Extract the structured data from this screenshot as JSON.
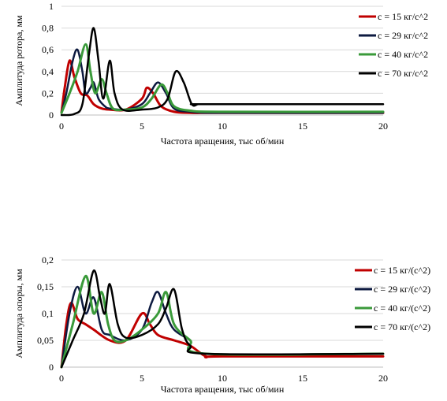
{
  "chart_data": [
    {
      "type": "line",
      "xlabel": "Частота вращения, тыс об/мин",
      "ylabel": "Амплитуда ротора, мм",
      "xlim": [
        0,
        20
      ],
      "ylim": [
        0,
        1
      ],
      "xticks": [
        "0",
        "5",
        "10",
        "15",
        "20"
      ],
      "yticks": [
        "0",
        "0,2",
        "0,4",
        "0,6",
        "0,8",
        "1"
      ],
      "grid": true,
      "legend": "right",
      "series": [
        {
          "name": "c = 15 кг/с^2",
          "color": "#c00000",
          "x": [
            0,
            0.2,
            0.5,
            0.8,
            1.2,
            1.6,
            2.0,
            2.5,
            3.0,
            4.0,
            5.0,
            5.3,
            5.7,
            6.2,
            7.0,
            8.0,
            10.0,
            20.0
          ],
          "y": [
            0.02,
            0.25,
            0.5,
            0.35,
            0.2,
            0.18,
            0.1,
            0.06,
            0.05,
            0.05,
            0.15,
            0.25,
            0.2,
            0.08,
            0.03,
            0.02,
            0.02,
            0.02
          ]
        },
        {
          "name": "c = 29 кг/с^2",
          "color": "#0d1a40",
          "x": [
            0,
            0.3,
            0.7,
            1.0,
            1.3,
            1.5,
            1.8,
            2.0,
            2.3,
            2.7,
            3.0,
            4.0,
            5.0,
            5.5,
            6.0,
            6.5,
            7.0,
            8.0,
            10.0,
            20.0
          ],
          "y": [
            0.02,
            0.2,
            0.5,
            0.6,
            0.4,
            0.2,
            0.25,
            0.3,
            0.15,
            0.08,
            0.06,
            0.05,
            0.1,
            0.2,
            0.3,
            0.2,
            0.06,
            0.03,
            0.02,
            0.02
          ]
        },
        {
          "name": "c = 40 кг/с^2",
          "color": "#3a9a3a",
          "x": [
            0,
            0.5,
            1.0,
            1.5,
            1.8,
            2.1,
            2.5,
            2.8,
            3.2,
            4.0,
            5.0,
            5.6,
            6.2,
            6.6,
            7.0,
            8.0,
            10.0,
            20.0
          ],
          "y": [
            0.02,
            0.2,
            0.4,
            0.65,
            0.4,
            0.2,
            0.33,
            0.2,
            0.06,
            0.05,
            0.07,
            0.15,
            0.28,
            0.2,
            0.08,
            0.04,
            0.03,
            0.03
          ]
        },
        {
          "name": "c = 70 кг/с^2",
          "color": "#000000",
          "x": [
            0,
            0.8,
            1.3,
            1.7,
            2.0,
            2.3,
            2.6,
            3.0,
            3.3,
            3.8,
            5.0,
            6.0,
            6.6,
            7.1,
            7.6,
            8.1,
            8.5,
            9.0,
            20.0
          ],
          "y": [
            0,
            0.01,
            0.1,
            0.55,
            0.8,
            0.5,
            0.15,
            0.5,
            0.2,
            0.05,
            0.05,
            0.07,
            0.15,
            0.4,
            0.3,
            0.1,
            0.1,
            0.1,
            0.1
          ]
        }
      ]
    },
    {
      "type": "line",
      "xlabel": "Частота вращения, тыс об/мин",
      "ylabel": "Амплитуда опоры, мм",
      "xlim": [
        0,
        20
      ],
      "ylim": [
        0,
        0.2
      ],
      "xticks": [
        "0",
        "5",
        "10",
        "15",
        "20"
      ],
      "yticks": [
        "0",
        "0,05",
        "0,1",
        "0,15",
        "0,2"
      ],
      "grid": true,
      "legend": "right",
      "series": [
        {
          "name": "c = 15 кг/(с^2)",
          "color": "#c00000",
          "x": [
            0,
            0.3,
            0.6,
            1.0,
            1.5,
            2.0,
            3.0,
            4.0,
            5.0,
            5.5,
            6.0,
            7.0,
            8.0,
            9.0,
            10.0,
            20.0
          ],
          "y": [
            0,
            0.08,
            0.12,
            0.09,
            0.08,
            0.07,
            0.05,
            0.05,
            0.1,
            0.08,
            0.06,
            0.05,
            0.04,
            0.02,
            0.02,
            0.02
          ]
        },
        {
          "name": "c = 29 кг/(с^2)",
          "color": "#0d1a40",
          "x": [
            0,
            0.5,
            1.0,
            1.5,
            2.0,
            2.5,
            3.0,
            4.0,
            5.0,
            5.6,
            6.0,
            6.5,
            7.0,
            8.0,
            9.0,
            20.0
          ],
          "y": [
            0,
            0.1,
            0.15,
            0.1,
            0.13,
            0.07,
            0.06,
            0.05,
            0.07,
            0.12,
            0.14,
            0.1,
            0.07,
            0.05,
            0.025,
            0.025
          ]
        },
        {
          "name": "c = 40 кг/(с^2)",
          "color": "#3a9a3a",
          "x": [
            0,
            0.7,
            1.5,
            2.0,
            2.5,
            2.9,
            3.3,
            4.0,
            5.0,
            6.0,
            6.5,
            7.0,
            8.0,
            9.0,
            20.0
          ],
          "y": [
            0,
            0.08,
            0.17,
            0.1,
            0.14,
            0.08,
            0.05,
            0.05,
            0.07,
            0.1,
            0.14,
            0.08,
            0.05,
            0.025,
            0.025
          ]
        },
        {
          "name": "c = 70 кг/(с^2)",
          "color": "#000000",
          "x": [
            0,
            0.7,
            1.4,
            2.0,
            2.4,
            2.7,
            3.0,
            3.5,
            4.0,
            5.0,
            6.0,
            6.5,
            7.0,
            7.5,
            8.0,
            9.0,
            20.0
          ],
          "y": [
            0,
            0.05,
            0.1,
            0.18,
            0.13,
            0.1,
            0.155,
            0.08,
            0.055,
            0.06,
            0.08,
            0.11,
            0.145,
            0.07,
            0.04,
            0.025,
            0.025
          ]
        }
      ]
    }
  ]
}
